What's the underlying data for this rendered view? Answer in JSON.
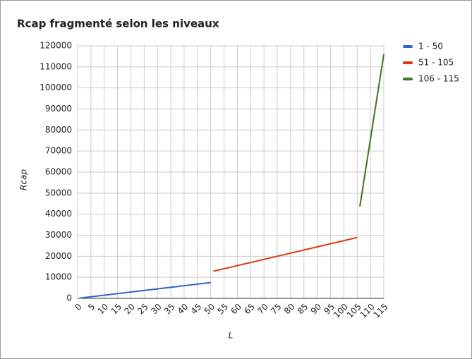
{
  "chart_data": {
    "type": "line",
    "title": "Rcap fragmenté selon les niveaux",
    "x_label": "L",
    "y_label": "Rcap",
    "series": [
      {
        "name": "1 - 50",
        "color": "#3366cc",
        "x": [
          1,
          50
        ],
        "values": [
          150,
          7500
        ]
      },
      {
        "name": "51 - 105",
        "color": "#dc3912",
        "x": [
          51,
          105
        ],
        "values": [
          12900,
          28900
        ]
      },
      {
        "name": "106 - 115",
        "color": "#38761d",
        "x": [
          106,
          115
        ],
        "values": [
          43600,
          116000
        ]
      }
    ],
    "xlim": [
      0,
      115
    ],
    "xticks": [
      0,
      5,
      10,
      15,
      20,
      25,
      30,
      35,
      40,
      45,
      50,
      55,
      60,
      65,
      70,
      75,
      80,
      85,
      90,
      95,
      100,
      105,
      110,
      115
    ],
    "ylim": [
      0,
      120000
    ],
    "yticks": [
      0,
      10000,
      20000,
      30000,
      40000,
      50000,
      60000,
      70000,
      80000,
      90000,
      100000,
      110000,
      120000
    ],
    "grid": true,
    "legend": "right"
  }
}
